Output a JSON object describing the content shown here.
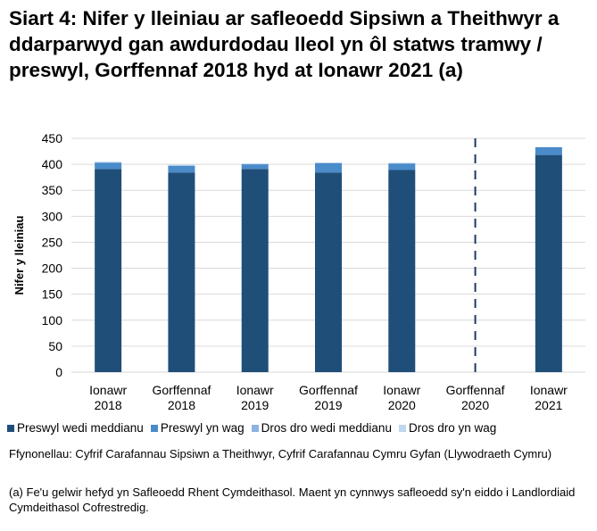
{
  "title": "Siart 4: Nifer y lleiniau ar safleoedd Sipsiwn a Theithwyr a ddarparwyd gan awdurdodau lleol yn ôl statws tramwy / preswyl, Gorffennaf 2018 hyd at Ionawr 2021 (a)",
  "sources": "Ffynonellau: Cyfrif Carafannau Sipsiwn a Theithwyr, Cyfrif Carafannau Cymru Gyfan (Llywodraeth Cymru)",
  "footnote": "(a) Fe'u gelwir hefyd yn Safleoedd Rhent Cymdeithasol. Maent yn cynnwys safleoedd sy'n eiddo i Landlordiaid Cymdeithasol Cofrestredig.",
  "chart_data": {
    "type": "bar",
    "stacked": true,
    "ylabel": "Nifer y lleiniau",
    "ylim": [
      0,
      450
    ],
    "yticks": [
      0,
      50,
      100,
      150,
      200,
      250,
      300,
      350,
      400,
      450
    ],
    "grid": true,
    "legend_position": "bottom",
    "categories": [
      [
        "Ionawr",
        "2018"
      ],
      [
        "Gorffennaf",
        "2018"
      ],
      [
        "Ionawr",
        "2019"
      ],
      [
        "Gorffennaf",
        "2019"
      ],
      [
        "Ionawr",
        "2020"
      ],
      [
        "Gorffennaf",
        "2020"
      ],
      [
        "Ionawr",
        "2021"
      ]
    ],
    "divider_after_category": "Gorffennaf 2020",
    "series": [
      {
        "name": "Preswyl wedi meddianu",
        "color": "#1f4e79",
        "values": [
          391,
          384,
          391,
          384,
          389,
          null,
          418
        ]
      },
      {
        "name": "Preswyl yn wag",
        "color": "#4a8bc9",
        "values": [
          12,
          13,
          9,
          18,
          12,
          null,
          15
        ]
      },
      {
        "name": "Dros dro wedi meddianu",
        "color": "#8db3e2",
        "values": [
          1,
          1,
          1,
          1,
          1,
          null,
          0
        ]
      },
      {
        "name": "Dros dro yn wag",
        "color": "#bdd7ee",
        "values": [
          1,
          1,
          0,
          0,
          1,
          null,
          0
        ]
      }
    ]
  }
}
